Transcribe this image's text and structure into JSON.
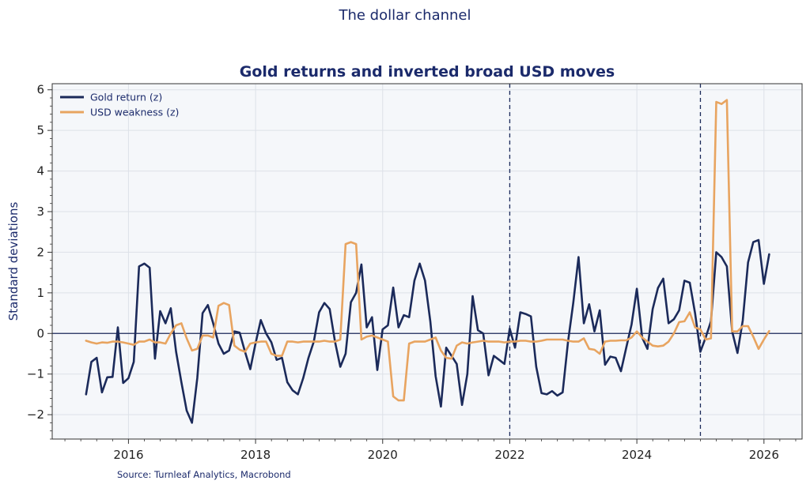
{
  "chart_data": {
    "type": "line",
    "suptitle": "The dollar channel",
    "title": "Gold returns and inverted broad USD moves",
    "xlabel": "",
    "ylabel": "Standard deviations",
    "source": "Source: Turnleaf Analytics, Macrobond",
    "xlim": [
      2014.8,
      2026.6
    ],
    "ylim": [
      -2.6,
      6.15
    ],
    "x_ticks": [
      2016,
      2018,
      2020,
      2022,
      2024,
      2026
    ],
    "y_ticks": [
      -2,
      -1,
      0,
      1,
      2,
      3,
      4,
      5,
      6
    ],
    "x_tick_labels": [
      "2016",
      "2018",
      "2020",
      "2022",
      "2024",
      "2026"
    ],
    "y_tick_labels": [
      "−2",
      "−1",
      "0",
      "1",
      "2",
      "3",
      "4",
      "5",
      "6"
    ],
    "grid": true,
    "legend_position": "top-left",
    "hline": 0,
    "vlines": [
      2022.0,
      2025.0
    ],
    "x_start": 2015.333,
    "x_step": 0.08333,
    "series": [
      {
        "name": "Gold return (z)",
        "color": "#1b2a5a",
        "values": [
          -1.5,
          -0.7,
          -0.6,
          -1.45,
          -1.08,
          -1.07,
          0.15,
          -1.22,
          -1.1,
          -0.7,
          1.65,
          1.72,
          1.62,
          -0.62,
          0.55,
          0.25,
          0.62,
          -0.45,
          -1.2,
          -1.9,
          -2.2,
          -1.1,
          0.5,
          0.7,
          0.25,
          -0.25,
          -0.5,
          -0.42,
          0.05,
          0.02,
          -0.45,
          -0.88,
          -0.25,
          0.33,
          0.0,
          -0.22,
          -0.65,
          -0.6,
          -1.2,
          -1.4,
          -1.5,
          -1.1,
          -0.6,
          -0.2,
          0.52,
          0.75,
          0.6,
          -0.2,
          -0.82,
          -0.5,
          0.77,
          1.0,
          1.7,
          0.15,
          0.4,
          -0.9,
          0.1,
          0.2,
          1.13,
          0.15,
          0.45,
          0.4,
          1.3,
          1.72,
          1.3,
          0.3,
          -1.05,
          -1.8,
          -0.35,
          -0.55,
          -0.75,
          -1.76,
          -1.0,
          0.92,
          0.08,
          0.0,
          -1.03,
          -0.55,
          -0.65,
          -0.75,
          0.12,
          -0.35,
          0.52,
          0.48,
          0.42,
          -0.82,
          -1.47,
          -1.5,
          -1.42,
          -1.53,
          -1.45,
          -0.22,
          0.75,
          1.88,
          0.25,
          0.72,
          0.05,
          0.57,
          -0.77,
          -0.57,
          -0.6,
          -0.93,
          -0.35,
          0.22,
          1.1,
          -0.1,
          -0.38,
          0.6,
          1.12,
          1.35,
          0.25,
          0.35,
          0.57,
          1.3,
          1.25,
          0.5,
          -0.45,
          -0.1,
          0.3,
          2.0,
          1.88,
          1.65,
          0.05,
          -0.48,
          0.32,
          1.75,
          2.25,
          2.3,
          1.22,
          1.95
        ]
      },
      {
        "name": "USD weakness (z)",
        "color": "#e8a460",
        "values": [
          -0.18,
          -0.22,
          -0.25,
          -0.22,
          -0.23,
          -0.2,
          -0.2,
          -0.22,
          -0.25,
          -0.28,
          -0.2,
          -0.2,
          -0.15,
          -0.22,
          -0.22,
          -0.25,
          0.0,
          0.2,
          0.25,
          -0.12,
          -0.42,
          -0.38,
          -0.05,
          -0.05,
          -0.1,
          0.68,
          0.75,
          0.7,
          -0.3,
          -0.4,
          -0.45,
          -0.25,
          -0.22,
          -0.2,
          -0.2,
          -0.5,
          -0.55,
          -0.55,
          -0.2,
          -0.2,
          -0.22,
          -0.2,
          -0.2,
          -0.2,
          -0.2,
          -0.18,
          -0.2,
          -0.2,
          -0.15,
          2.2,
          2.25,
          2.2,
          -0.15,
          -0.08,
          -0.05,
          -0.1,
          -0.15,
          -0.2,
          -1.55,
          -1.65,
          -1.65,
          -0.25,
          -0.2,
          -0.2,
          -0.2,
          -0.15,
          -0.1,
          -0.42,
          -0.6,
          -0.62,
          -0.3,
          -0.22,
          -0.25,
          -0.22,
          -0.2,
          -0.18,
          -0.2,
          -0.2,
          -0.2,
          -0.22,
          -0.2,
          -0.2,
          -0.18,
          -0.18,
          -0.2,
          -0.2,
          -0.18,
          -0.15,
          -0.15,
          -0.15,
          -0.15,
          -0.18,
          -0.2,
          -0.2,
          -0.12,
          -0.38,
          -0.4,
          -0.5,
          -0.2,
          -0.18,
          -0.18,
          -0.17,
          -0.17,
          -0.1,
          0.05,
          -0.1,
          -0.2,
          -0.3,
          -0.32,
          -0.3,
          -0.2,
          0.0,
          0.28,
          0.3,
          0.52,
          0.15,
          0.1,
          -0.15,
          -0.12,
          5.7,
          5.65,
          5.75,
          0.05,
          0.05,
          0.18,
          0.18,
          -0.08,
          -0.38,
          -0.15,
          0.06
        ]
      }
    ]
  }
}
